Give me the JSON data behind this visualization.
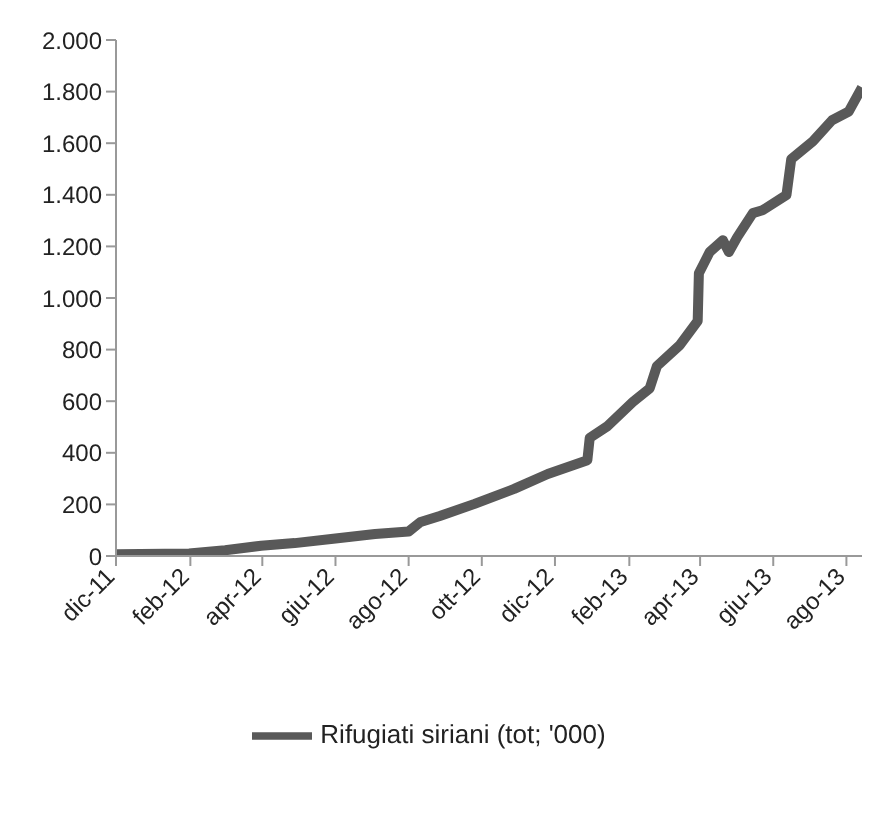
{
  "chart_data": {
    "type": "line",
    "x": [
      "2011-12-01",
      "2012-01-31",
      "2012-03-01",
      "2012-03-31",
      "2012-04-28",
      "2012-06-01",
      "2012-07-04",
      "2012-08-01",
      "2012-08-11",
      "2012-08-27",
      "2012-09-25",
      "2012-10-28",
      "2012-11-25",
      "2012-12-28",
      "2012-12-30",
      "2013-01-14",
      "2013-02-04",
      "2013-02-18",
      "2013-02-24",
      "2013-03-15",
      "2013-03-30",
      "2013-03-31",
      "2013-04-09",
      "2013-04-20",
      "2013-04-25",
      "2013-05-02",
      "2013-05-15",
      "2013-05-23",
      "2013-06-12",
      "2013-06-16",
      "2013-07-04",
      "2013-07-20",
      "2013-08-03",
      "2013-08-14"
    ],
    "series": [
      {
        "name": "Rifugiati siriani (tot; '000)",
        "color": "#595959",
        "values": [
          7,
          10,
          22,
          40,
          50,
          68,
          85,
          95,
          132,
          155,
          202,
          260,
          318,
          371,
          458,
          504,
          597,
          650,
          736,
          817,
          911,
          1096,
          1178,
          1224,
          1178,
          1236,
          1329,
          1340,
          1399,
          1538,
          1607,
          1689,
          1723,
          1816
        ]
      }
    ],
    "xlim": [
      "2011-12-01",
      "2013-08-14"
    ],
    "xticks": [
      {
        "value": "2011-12-01",
        "label": "dic-11"
      },
      {
        "value": "2012-02-01",
        "label": "feb-12"
      },
      {
        "value": "2012-04-01",
        "label": "apr-12"
      },
      {
        "value": "2012-06-01",
        "label": "giu-12"
      },
      {
        "value": "2012-08-01",
        "label": "ago-12"
      },
      {
        "value": "2012-10-01",
        "label": "ott-12"
      },
      {
        "value": "2012-12-01",
        "label": "dic-12"
      },
      {
        "value": "2013-02-01",
        "label": "feb-13"
      },
      {
        "value": "2013-04-01",
        "label": "apr-13"
      },
      {
        "value": "2013-06-01",
        "label": "giu-13"
      },
      {
        "value": "2013-08-01",
        "label": "ago-13"
      }
    ],
    "ylim": [
      0,
      2000
    ],
    "yticks": [
      0,
      200,
      400,
      600,
      800,
      {
        "value": 1000,
        "label": "1.000"
      },
      {
        "value": 1200,
        "label": "1.200"
      },
      {
        "value": 1400,
        "label": "1.400"
      },
      {
        "value": 1600,
        "label": "1.600"
      },
      {
        "value": 1800,
        "label": "1.800"
      },
      {
        "value": 2000,
        "label": "2.000"
      }
    ],
    "grid": false,
    "legend": "bottom",
    "marker": "none",
    "line_style": "solid"
  }
}
